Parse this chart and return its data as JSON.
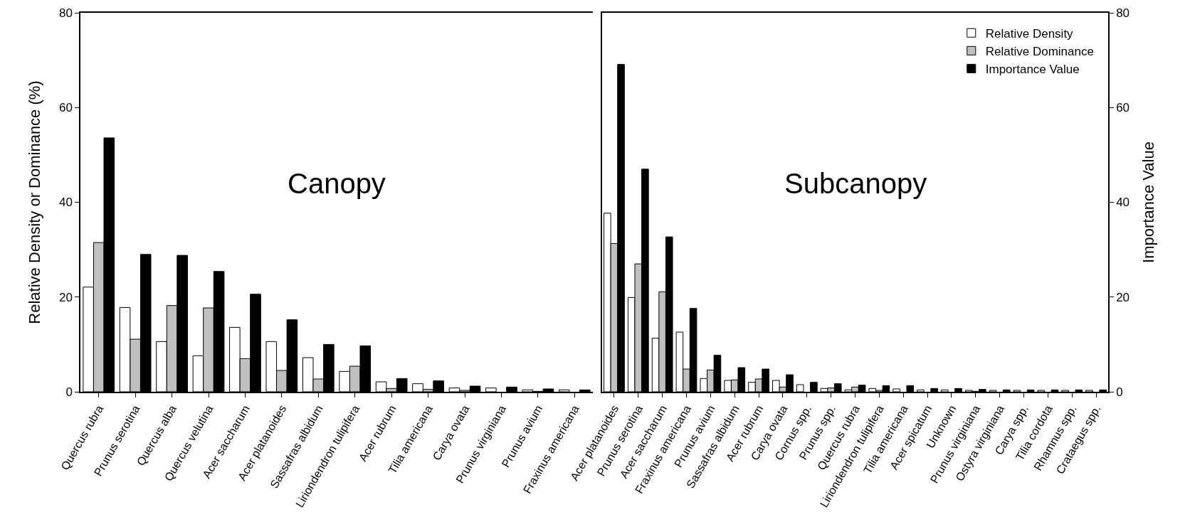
{
  "chart_data": [
    {
      "type": "bar",
      "ylabel": "Relative Density or Dominance (%)",
      "annotations": [
        "Canopy"
      ],
      "ylim": [
        0,
        80
      ],
      "yticks": [
        0,
        20,
        40,
        60,
        80
      ],
      "grid": false,
      "legend": false,
      "categories": [
        "Quercus rubra",
        "Prunus serotina",
        "Quercus alba",
        "Quercus velutina",
        "Acer saccharum",
        "Acer platanoides",
        "Sassafras albidum",
        "Liriondendron tulipifera",
        "Acer rubrum",
        "Tilia americana",
        "Carya ovata",
        "Prunus virginiana",
        "Prunus avium",
        "Fraxinus americana"
      ],
      "series": [
        {
          "color": "#ffffff",
          "values": [
            22.1,
            17.8,
            10.6,
            7.6,
            13.6,
            10.6,
            7.2,
            4.3,
            2.1,
            1.7,
            0.8,
            0.8,
            0.4,
            0.4
          ]
        },
        {
          "color": "#c0c0c0",
          "values": [
            31.5,
            11.1,
            18.2,
            17.7,
            7.0,
            4.5,
            2.7,
            5.4,
            0.7,
            0.5,
            0.3,
            0,
            0.1,
            0
          ]
        },
        {
          "color": "#000000",
          "values": [
            53.6,
            29.0,
            28.8,
            25.4,
            20.6,
            15.2,
            10.0,
            9.7,
            2.8,
            2.3,
            1.2,
            1.0,
            0.6,
            0.4
          ]
        }
      ]
    },
    {
      "type": "bar",
      "y2label": "Importance Value",
      "annotations": [
        "Subcanopy"
      ],
      "y2lim": [
        0,
        80
      ],
      "y2ticks": [
        0,
        20,
        40,
        60,
        80
      ],
      "grid": false,
      "legend": "top right",
      "categories": [
        "Acer platanoides",
        "Prunus serotina",
        "Acer saccharum",
        "Fraxinus americana",
        "Prunus avium",
        "Sassafras albidum",
        "Acer rubrum",
        "Carya ovata",
        "Cornus spp.",
        "Prunus spp.",
        "Quercus rubra",
        "Liriondendron tulipifera",
        "Tilia americana",
        "Acer spicatum",
        "Unknown",
        "Prunus virginiana",
        "Ostyra virginiana",
        "Carya spp.",
        "Tilia cordota",
        "Rhamnus spp.",
        "Crataegus spp."
      ],
      "series": [
        {
          "name": "Relative Density",
          "color": "#ffffff",
          "axis": "y2",
          "values": [
            37.7,
            19.9,
            11.3,
            12.6,
            2.8,
            2.4,
            2.0,
            2.4,
            1.5,
            0.7,
            0.4,
            0.7,
            0.6,
            0.4,
            0.4,
            0.3,
            0.3,
            0.3,
            0.3,
            0.3,
            0.3
          ]
        },
        {
          "name": "Relative Dominance",
          "color": "#c0c0c0",
          "axis": "y2",
          "values": [
            31.3,
            27.0,
            21.1,
            4.8,
            4.6,
            2.5,
            2.7,
            1.0,
            null,
            0.8,
            1.0,
            0.3,
            null,
            null,
            null,
            0.1,
            0,
            0,
            0,
            0,
            0
          ]
        },
        {
          "name": "Importance Value",
          "color": "#000000",
          "axis": "y2",
          "values": [
            69.1,
            47.0,
            32.7,
            17.6,
            7.7,
            5.1,
            4.8,
            3.6,
            2.0,
            1.7,
            1.4,
            1.3,
            1.3,
            0.7,
            0.7,
            0.5,
            0.4,
            0.4,
            0.4,
            0.4,
            0.4
          ]
        }
      ]
    }
  ]
}
